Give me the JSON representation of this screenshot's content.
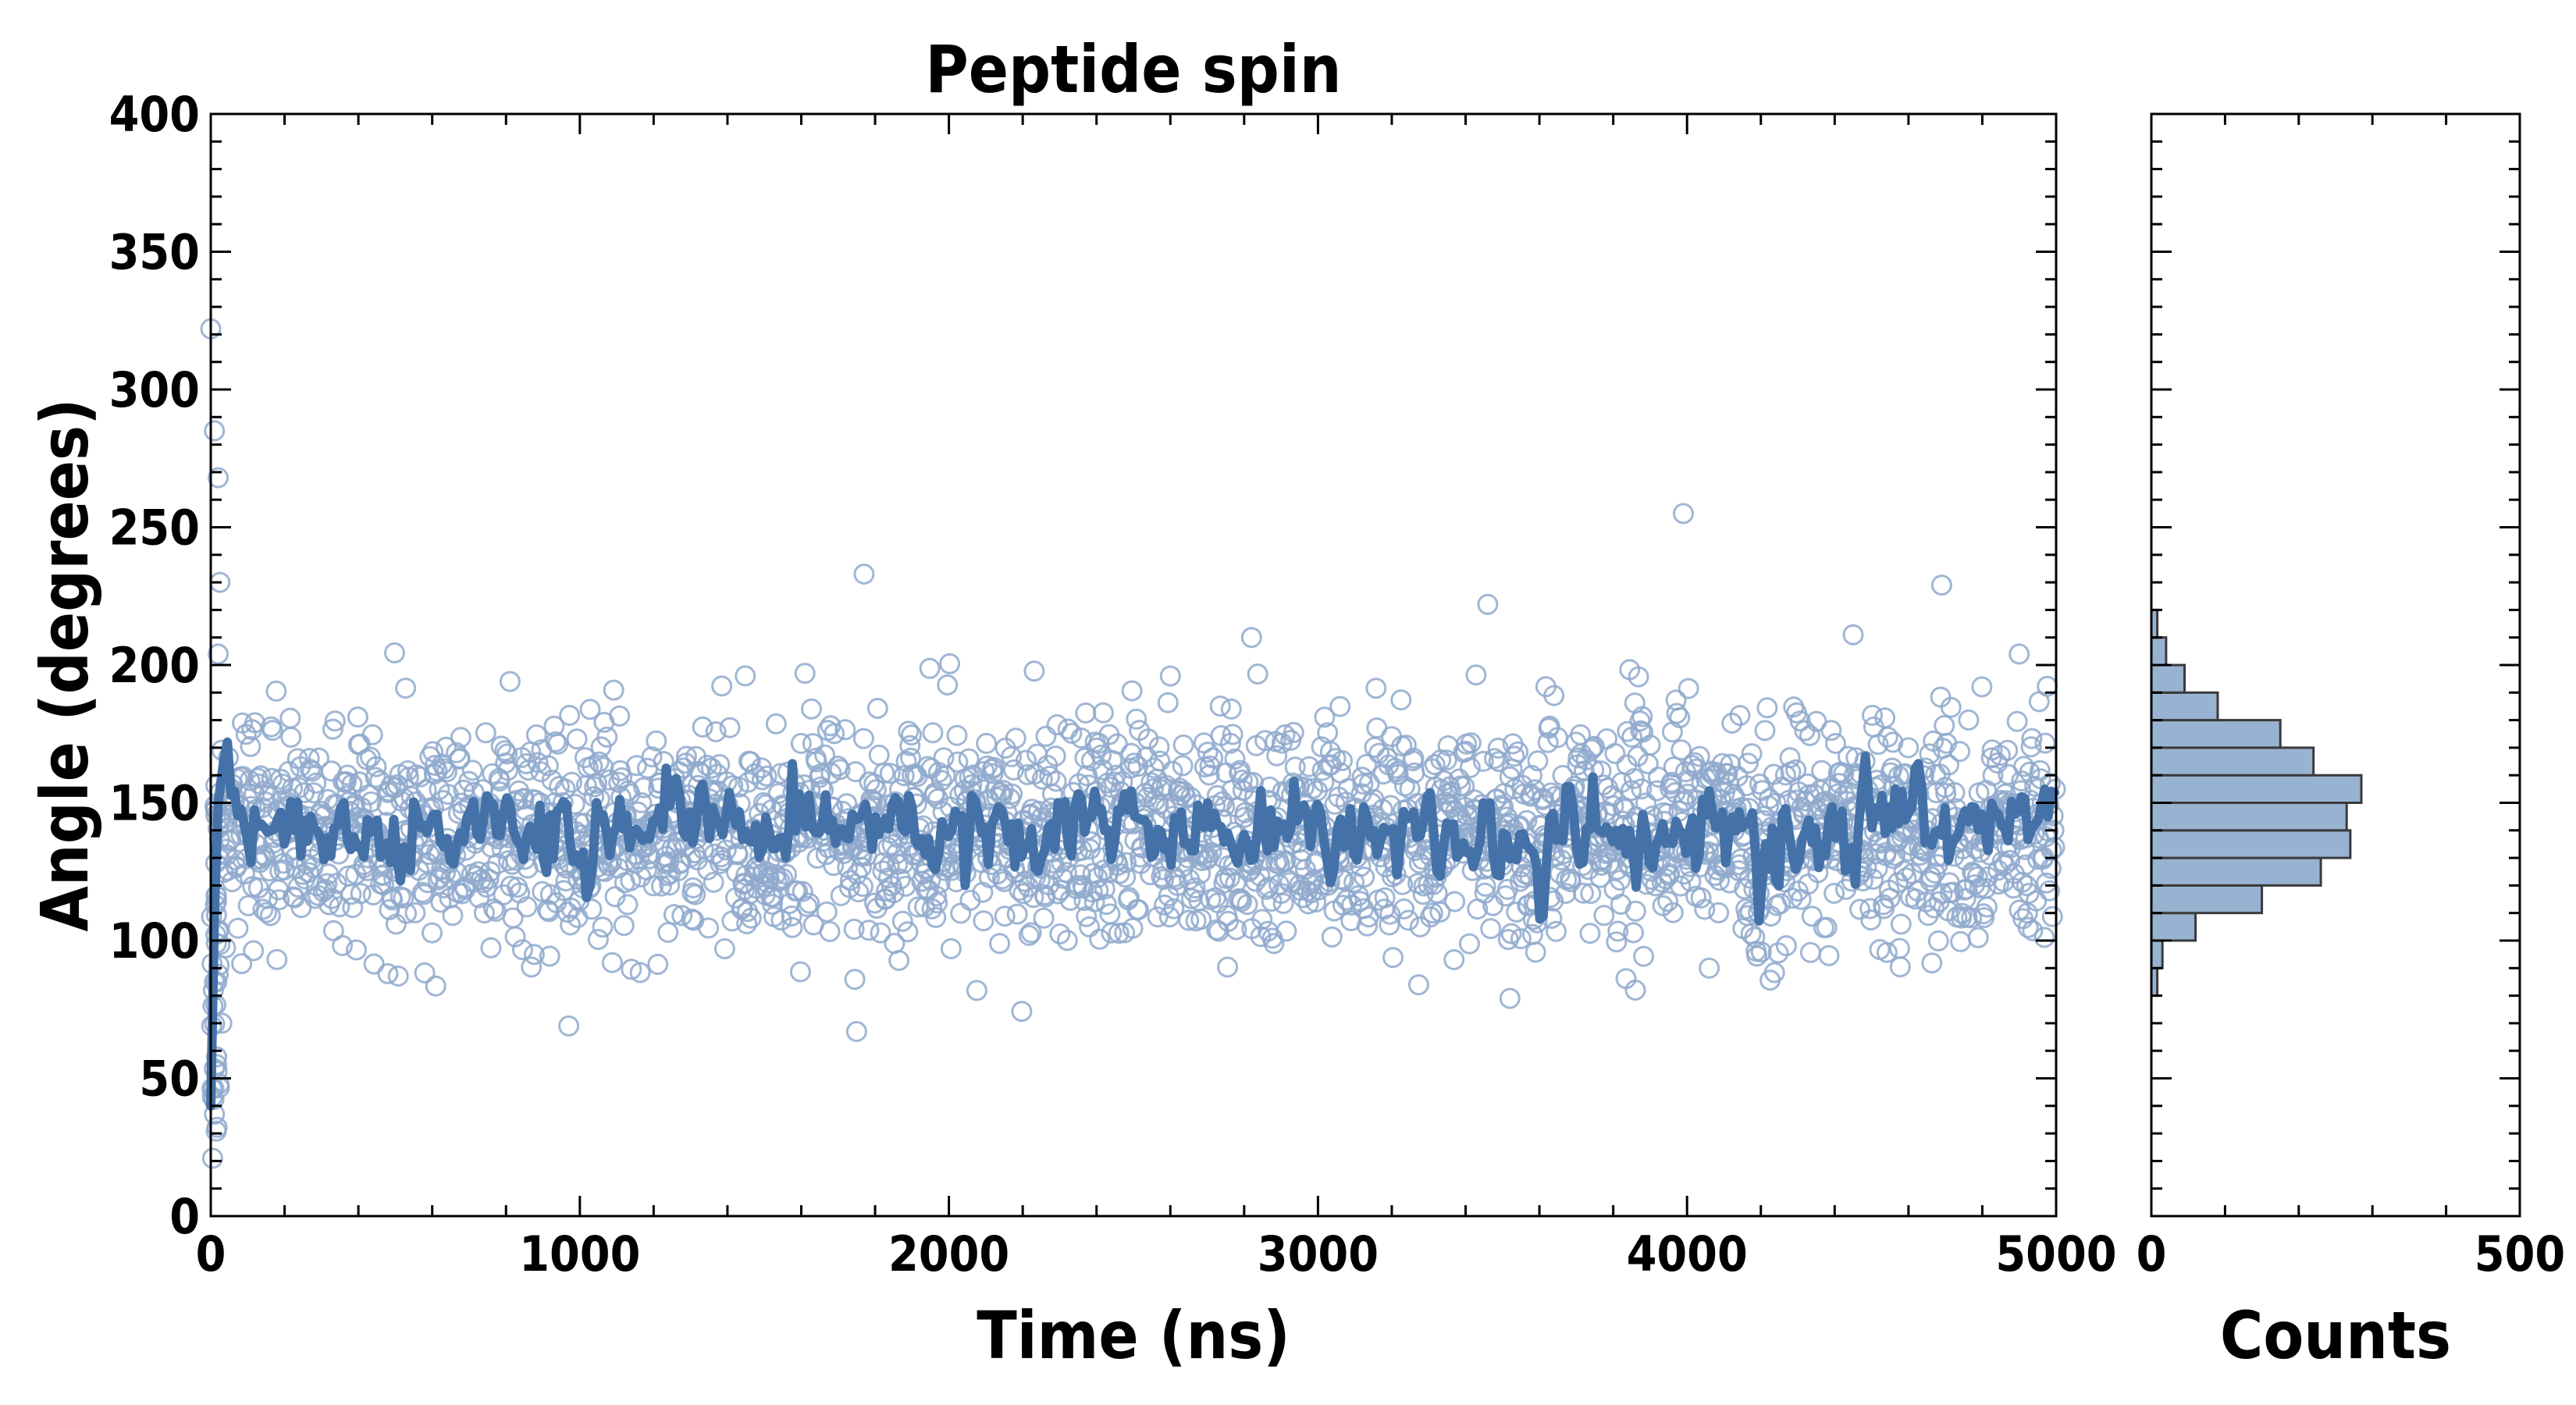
{
  "colors": {
    "primary": "#4472a8",
    "scatter_stroke": "#8fa9cc",
    "hist_fill": "#98b2d1",
    "hist_edge": "#3a3a3a",
    "axis": "#000000"
  },
  "chart_data": [
    {
      "type": "scatter",
      "title": "Peptide spin",
      "xlabel": "Time (ns)",
      "ylabel": "Angle (degrees)",
      "xlim": [
        0,
        5000
      ],
      "ylim": [
        0,
        400
      ],
      "xticks": [
        0,
        1000,
        2000,
        3000,
        4000,
        5000
      ],
      "yticks": [
        0,
        50,
        100,
        150,
        200,
        250,
        300,
        350,
        400
      ],
      "grid": false,
      "series": [
        {
          "name": "raw angle",
          "style": "open-circle markers",
          "description_stats": {
            "mean": 140,
            "std": 20,
            "n_points": 2500
          },
          "outliers": [
            {
              "x": 0,
              "y": 322
            },
            {
              "x": 10,
              "y": 285
            },
            {
              "x": 20,
              "y": 268
            },
            {
              "x": 25,
              "y": 230
            },
            {
              "x": 20,
              "y": 204
            },
            {
              "x": 30,
              "y": 70
            },
            {
              "x": 10,
              "y": 37
            },
            {
              "x": 5,
              "y": 21
            },
            {
              "x": 970,
              "y": 69
            },
            {
              "x": 1750,
              "y": 67
            },
            {
              "x": 1770,
              "y": 233
            },
            {
              "x": 3990,
              "y": 255
            },
            {
              "x": 3460,
              "y": 222
            },
            {
              "x": 4690,
              "y": 229
            },
            {
              "x": 2820,
              "y": 210
            },
            {
              "x": 4450,
              "y": 211
            },
            {
              "x": 2600,
              "y": 196
            },
            {
              "x": 1610,
              "y": 197
            },
            {
              "x": 3520,
              "y": 79
            },
            {
              "x": 3860,
              "y": 82
            },
            {
              "x": 4900,
              "y": 204
            },
            {
              "x": 480,
              "y": 88
            },
            {
              "x": 4060,
              "y": 90
            }
          ]
        },
        {
          "name": "running average",
          "style": "thick line",
          "baseline": 140,
          "initial_ramp": {
            "x": [
              0,
              10,
              20,
              35,
              45
            ],
            "y": [
              40,
              110,
              150,
              165,
              172
            ]
          }
        }
      ]
    },
    {
      "type": "histogram",
      "orientation": "horizontal",
      "xlabel": "Counts",
      "ylabel": "",
      "xlim": [
        0,
        500
      ],
      "ylim": [
        0,
        400
      ],
      "xticks": [
        0,
        500
      ],
      "bin_width": 10,
      "bins": [
        {
          "y0": 80,
          "y1": 90,
          "count": 8
        },
        {
          "y0": 90,
          "y1": 100,
          "count": 15
        },
        {
          "y0": 100,
          "y1": 110,
          "count": 60
        },
        {
          "y0": 110,
          "y1": 120,
          "count": 150
        },
        {
          "y0": 120,
          "y1": 130,
          "count": 230
        },
        {
          "y0": 130,
          "y1": 140,
          "count": 270
        },
        {
          "y0": 140,
          "y1": 150,
          "count": 265
        },
        {
          "y0": 150,
          "y1": 160,
          "count": 285
        },
        {
          "y0": 160,
          "y1": 170,
          "count": 220
        },
        {
          "y0": 170,
          "y1": 180,
          "count": 175
        },
        {
          "y0": 180,
          "y1": 190,
          "count": 90
        },
        {
          "y0": 190,
          "y1": 200,
          "count": 45
        },
        {
          "y0": 200,
          "y1": 210,
          "count": 20
        },
        {
          "y0": 210,
          "y1": 220,
          "count": 8
        }
      ]
    }
  ]
}
